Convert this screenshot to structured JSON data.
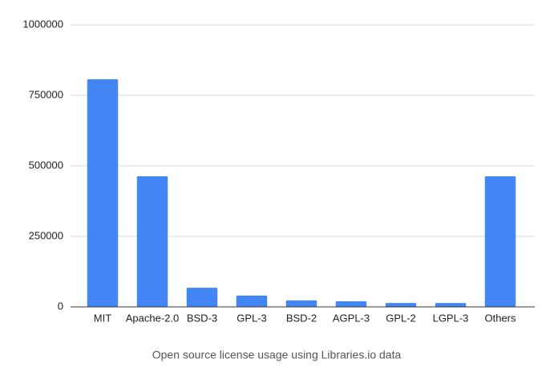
{
  "chart_data": {
    "type": "bar",
    "caption": "Open source license usage using Libraries.io data",
    "categories": [
      "MIT",
      "Apache-2.0",
      "BSD-3",
      "GPL-3",
      "BSD-2",
      "AGPL-3",
      "GPL-2",
      "LGPL-3",
      "Others"
    ],
    "values": [
      807000,
      463000,
      68000,
      40000,
      23000,
      20000,
      14000,
      14000,
      463000
    ],
    "color": "#4285f4",
    "ylim": [
      0,
      1000000
    ],
    "yticks": [
      0,
      250000,
      500000,
      750000,
      1000000
    ],
    "grid": true
  }
}
